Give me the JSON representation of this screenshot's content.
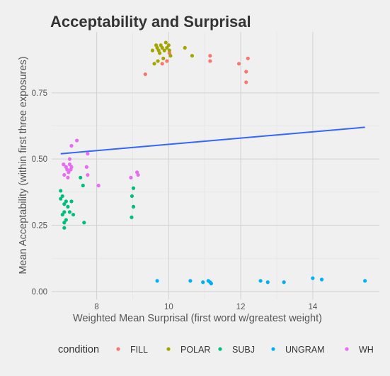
{
  "chart_data": {
    "type": "scatter",
    "title": "Acceptability and Surprisal",
    "xlabel": "Weighted Mean Surprisal (first word w/greatest weight)",
    "ylabel": "Mean Acceptability (within first three exposures)",
    "xlim": [
      6.75,
      15.85
    ],
    "ylim": [
      -0.03,
      0.98
    ],
    "x_ticks": [
      8,
      10,
      12,
      14
    ],
    "x_tick_labels": [
      "8",
      "10",
      "12",
      "14"
    ],
    "y_ticks": [
      0,
      0.25,
      0.5,
      0.75
    ],
    "y_tick_labels": [
      "0.00",
      "0.25",
      "0.50",
      "0.75"
    ],
    "grid": true,
    "legend_title": "condition",
    "legend_position": "bottom",
    "colors": {
      "FILL": "#f8766d",
      "POLAR": "#a3a500",
      "SUBJ": "#00bf7d",
      "UNGRAM": "#00b0f6",
      "WH": "#e76bf3",
      "trend": "#3366ff"
    },
    "series": [
      {
        "name": "FILL",
        "points": [
          [
            9.35,
            0.82
          ],
          [
            9.82,
            0.86
          ],
          [
            9.95,
            0.87
          ],
          [
            10.02,
            0.9
          ],
          [
            11.15,
            0.89
          ],
          [
            11.15,
            0.87
          ],
          [
            11.95,
            0.86
          ],
          [
            12.2,
            0.88
          ],
          [
            12.15,
            0.83
          ],
          [
            12.15,
            0.79
          ]
        ]
      },
      {
        "name": "POLAR",
        "points": [
          [
            9.55,
            0.91
          ],
          [
            9.65,
            0.93
          ],
          [
            9.68,
            0.92
          ],
          [
            9.72,
            0.91
          ],
          [
            9.75,
            0.9
          ],
          [
            9.78,
            0.93
          ],
          [
            9.82,
            0.92
          ],
          [
            9.88,
            0.91
          ],
          [
            9.92,
            0.94
          ],
          [
            9.95,
            0.92
          ],
          [
            10.0,
            0.93
          ],
          [
            10.02,
            0.91
          ],
          [
            10.05,
            0.89
          ],
          [
            9.85,
            0.88
          ],
          [
            9.7,
            0.87
          ],
          [
            9.6,
            0.86
          ],
          [
            10.45,
            0.92
          ],
          [
            10.65,
            0.89
          ]
        ]
      },
      {
        "name": "SUBJ",
        "points": [
          [
            7.0,
            0.38
          ],
          [
            7.05,
            0.36
          ],
          [
            7.1,
            0.33
          ],
          [
            7.0,
            0.35
          ],
          [
            7.15,
            0.34
          ],
          [
            7.2,
            0.32
          ],
          [
            7.1,
            0.3
          ],
          [
            7.05,
            0.29
          ],
          [
            7.25,
            0.3
          ],
          [
            7.15,
            0.27
          ],
          [
            7.1,
            0.26
          ],
          [
            7.1,
            0.24
          ],
          [
            7.35,
            0.29
          ],
          [
            7.3,
            0.34
          ],
          [
            7.55,
            0.43
          ],
          [
            7.62,
            0.4
          ],
          [
            7.65,
            0.26
          ],
          [
            8.98,
            0.36
          ],
          [
            9.02,
            0.39
          ],
          [
            9.02,
            0.32
          ],
          [
            8.97,
            0.28
          ]
        ]
      },
      {
        "name": "UNGRAM",
        "points": [
          [
            9.68,
            0.04
          ],
          [
            10.6,
            0.04
          ],
          [
            10.95,
            0.035
          ],
          [
            11.1,
            0.04
          ],
          [
            11.15,
            0.035
          ],
          [
            11.18,
            0.03
          ],
          [
            12.55,
            0.04
          ],
          [
            12.75,
            0.035
          ],
          [
            13.2,
            0.035
          ],
          [
            14.0,
            0.05
          ],
          [
            14.25,
            0.045
          ],
          [
            15.45,
            0.04
          ]
        ]
      },
      {
        "name": "WH",
        "points": [
          [
            7.08,
            0.48
          ],
          [
            7.1,
            0.44
          ],
          [
            7.15,
            0.47
          ],
          [
            7.18,
            0.46
          ],
          [
            7.22,
            0.45
          ],
          [
            7.25,
            0.48
          ],
          [
            7.28,
            0.46
          ],
          [
            7.2,
            0.43
          ],
          [
            7.3,
            0.47
          ],
          [
            7.25,
            0.5
          ],
          [
            7.3,
            0.55
          ],
          [
            7.45,
            0.57
          ],
          [
            7.75,
            0.52
          ],
          [
            7.72,
            0.47
          ],
          [
            7.75,
            0.44
          ],
          [
            8.05,
            0.4
          ],
          [
            8.95,
            0.43
          ],
          [
            9.12,
            0.45
          ],
          [
            9.15,
            0.44
          ]
        ]
      }
    ],
    "trendline": {
      "x": [
        7.0,
        15.45
      ],
      "y": [
        0.52,
        0.62
      ]
    }
  }
}
